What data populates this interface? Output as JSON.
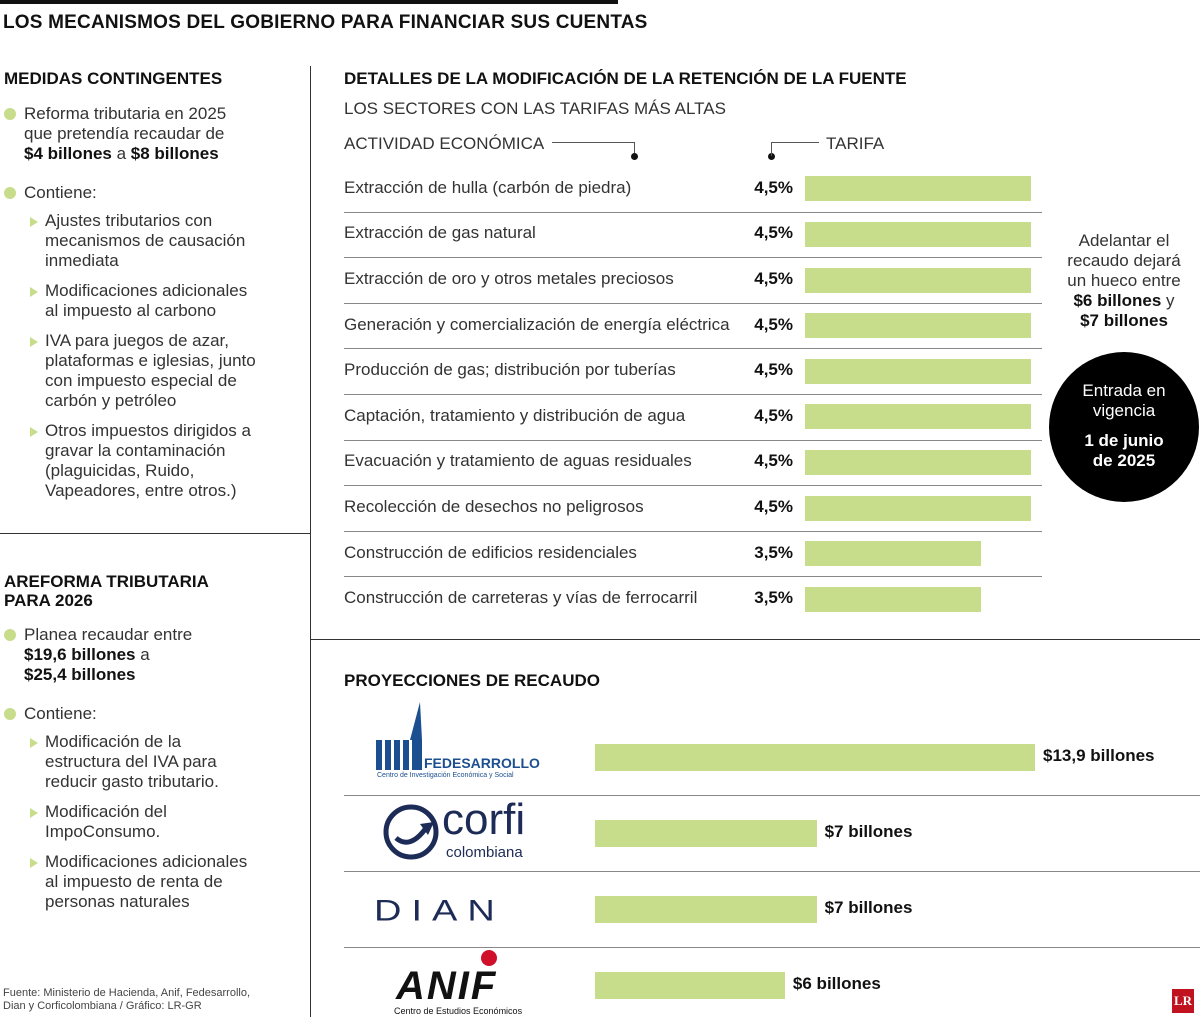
{
  "page_title": "LOS MECANISMOS DEL GOBIERNO PARA FINANCIAR SUS CUENTAS",
  "left": {
    "section1": {
      "title": "MEDIDAS CONTINGENTES",
      "b1_line1": "Reforma tributaria en 2025",
      "b1_line2": "que pretendía recaudar de",
      "b1_amount1": "$4 billones",
      "b1_mid": " a ",
      "b1_amount2": "$8 billones",
      "b2": "Contiene:",
      "sub": [
        [
          "Ajustes tributarios con",
          "mecanismos de causación",
          "inmediata"
        ],
        [
          "Modificaciones adicionales",
          "al impuesto al carbono"
        ],
        [
          "IVA para juegos de azar,",
          "plataformas e iglesias, junto",
          "con impuesto especial de",
          "carbón y petróleo"
        ],
        [
          "Otros impuestos dirigidos a",
          "gravar la contaminación",
          "(plaguicidas, Ruido,",
          "Vapeadores, entre otros.)"
        ]
      ]
    },
    "section2": {
      "title_l1": "AREFORMA TRIBUTARIA",
      "title_l2": "PARA 2026",
      "b1_line1": "Planea recaudar entre",
      "b1_amount1": "$19,6 billones",
      "b1_mid": " a",
      "b1_amount2": "$25,4 billones",
      "b2": "Contiene:",
      "sub": [
        [
          "Modificación de la",
          "estructura del IVA para",
          "reducir gasto tributario."
        ],
        [
          "Modificación del",
          "ImpoConsumo."
        ],
        [
          "Modificaciones adicionales",
          "al impuesto de renta de",
          "personas naturales"
        ]
      ]
    },
    "source_l1": "Fuente: Ministerio de Hacienda, Anif, Fedesarrollo,",
    "source_l2": "Dian y Corficolombiana / Gráfico: LR-GR"
  },
  "retencion": {
    "title": "DETALLES DE LA MODIFICACIÓN DE LA RETENCIÓN DE LA FUENTE",
    "subtitle": "LOS SECTORES CON LAS TARIFAS MÁS ALTAS",
    "col_activity": "ACTIVIDAD ECONÓMICA",
    "col_rate": "TARIFA",
    "note_l1": "Adelantar el",
    "note_l2": "recaudo dejará",
    "note_l3": "un hueco entre",
    "note_amount1": "$6 billones",
    "note_y": " y",
    "note_amount2": "$7 billones",
    "circle_l1": "Entrada en",
    "circle_l2": "vigencia",
    "circle_l3": "1 de junio",
    "circle_l4": "de 2025"
  },
  "proyecciones": {
    "title": "PROYECCIONES DE RECAUDO",
    "logos": {
      "fedesarrollo_name": "FEDESARROLLO",
      "fedesarrollo_sub": "Centro de Investigación Económica y Social",
      "corfi_name": "corfi",
      "corfi_sub": "colombiana",
      "dian": "DIAN",
      "anif": "ANIF",
      "anif_sub": "Centro de Estudios Económicos"
    }
  },
  "brand_mark": "LR",
  "colors": {
    "bar": "#c8dd8c",
    "bullet": "#c8dd8c",
    "circle": "#000000",
    "fedesarrollo_blue": "#1c4f8f",
    "corfi_navy": "#1d2b57",
    "anif_red": "#d0102b"
  },
  "chart_data": [
    {
      "type": "bar",
      "orientation": "horizontal",
      "title": "DETALLES DE LA MODIFICACIÓN DE LA RETENCIÓN DE LA FUENTE",
      "subtitle": "LOS SECTORES CON LAS TARIFAS MÁS ALTAS",
      "categories": [
        "Extracción de hulla (carbón de piedra)",
        "Extracción de gas natural",
        "Extracción de oro y otros metales preciosos",
        "Generación y comercialización de energía eléctrica",
        "Producción de gas; distribución por tuberías",
        "Captación, tratamiento y distribución de agua",
        "Evacuación y tratamiento de aguas residuales",
        "Recolección de desechos no peligrosos",
        "Construcción de edificios residenciales",
        "Construcción de carreteras y vías de ferrocarril"
      ],
      "values": [
        4.5,
        4.5,
        4.5,
        4.5,
        4.5,
        4.5,
        4.5,
        4.5,
        3.5,
        3.5
      ],
      "labels": [
        "4,5%",
        "4,5%",
        "4,5%",
        "4,5%",
        "4,5%",
        "4,5%",
        "4,5%",
        "4,5%",
        "3,5%",
        "3,5%"
      ],
      "xmax": 4.5
    },
    {
      "type": "bar",
      "orientation": "horizontal",
      "title": "PROYECCIONES DE RECAUDO",
      "categories": [
        "Fedesarrollo",
        "Corficolombiana",
        "DIAN",
        "ANIF"
      ],
      "values": [
        13.9,
        7,
        7,
        6
      ],
      "labels": [
        "$13,9 billones",
        "$7 billones",
        "$7 billones",
        "$6 billones"
      ]
    }
  ]
}
